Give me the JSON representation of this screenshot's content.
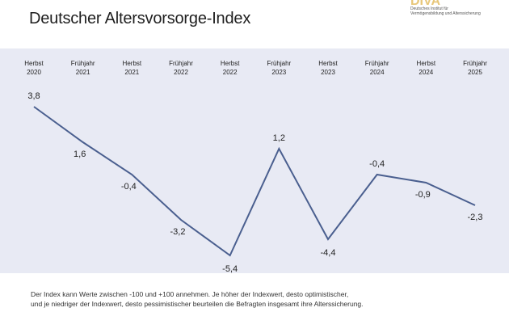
{
  "header": {
    "title": "Deutscher Altersvorsorge-Index",
    "logo": {
      "mark": "DIVA",
      "line1": "Deutsches Institut für",
      "line2": "Vermögensbildung und Alterssicherung",
      "colors": {
        "mark": "#e8c77a"
      }
    }
  },
  "chart_data": {
    "type": "line",
    "title": "Deutscher Altersvorsorge-Index",
    "xlabel": "",
    "ylabel": "",
    "grid": false,
    "legend": "none",
    "categories": [
      [
        "Herbst",
        "2020"
      ],
      [
        "Frühjahr",
        "2021"
      ],
      [
        "Herbst",
        "2021"
      ],
      [
        "Frühjahr",
        "2022"
      ],
      [
        "Herbst",
        "2022"
      ],
      [
        "Frühjahr",
        "2023"
      ],
      [
        "Herbst",
        "2023"
      ],
      [
        "Frühjahr",
        "2024"
      ],
      [
        "Herbst",
        "2024"
      ],
      [
        "Frühjahr",
        "2025"
      ]
    ],
    "series": [
      {
        "values": [
          3.8,
          1.6,
          -0.4,
          -3.2,
          -5.4,
          1.2,
          -4.4,
          -0.4,
          -0.9,
          -2.3
        ],
        "labels": [
          "3,8",
          "1,6",
          "-0,4",
          "-3,2",
          "-5,4",
          "1,2",
          "-4,4",
          "-0,4",
          "-0,9",
          "-2,3"
        ],
        "color": "#4a5f8f"
      }
    ],
    "ylim": [
      -6,
      4.5
    ],
    "colors": {
      "panel": "#e8eaf4",
      "line": "#4a5f8f",
      "text": "#222222"
    }
  },
  "footnote": {
    "line1": "Der Index kann Werte zwischen -100 und +100 annehmen. Je höher der Indexwert, desto optimistischer,",
    "line2": "und je niedriger der Indexwert, desto pessimistischer beurteilen die Befragten insgesamt ihre Alterssicherung."
  }
}
